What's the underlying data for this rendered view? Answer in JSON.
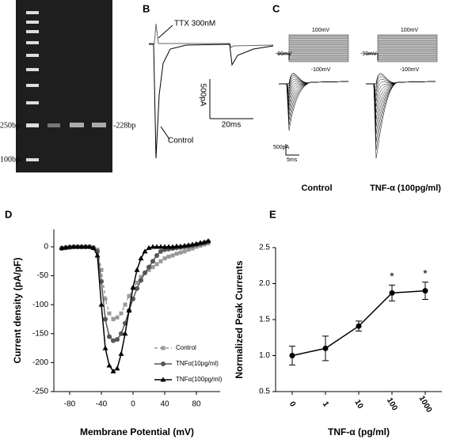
{
  "panels": {
    "A": {
      "label": "A",
      "markers": [
        "250bp-",
        "100bp-",
        "-228bp"
      ]
    },
    "B": {
      "label": "B",
      "texts": [
        "TTX 300nM",
        "Control",
        "500pA",
        "20ms"
      ]
    },
    "C": {
      "label": "C",
      "texts": [
        "100mV",
        "-90mV",
        "-100mV",
        "100mV",
        "-90mV",
        "-100mV",
        "500pA",
        "5ms"
      ],
      "conditions": [
        "Control",
        "TNF-α (100pg/ml)"
      ]
    },
    "D": {
      "label": "D"
    },
    "E": {
      "label": "E"
    }
  },
  "chart_data": [
    {
      "type": "line",
      "xlabel": "Membrane Potential (mV)",
      "ylabel": "Current density (pA/pF)",
      "x": [
        -90,
        -85,
        -80,
        -75,
        -70,
        -65,
        -60,
        -55,
        -50,
        -45,
        -40,
        -35,
        -30,
        -25,
        -20,
        -15,
        -10,
        -5,
        0,
        5,
        10,
        15,
        20,
        25,
        30,
        35,
        40,
        45,
        50,
        55,
        60,
        65,
        70,
        75,
        80,
        85,
        90,
        95
      ],
      "series": [
        {
          "name": "Control",
          "color": "#999999",
          "marker": "square",
          "dashed": true,
          "values": [
            -2,
            -1,
            -1,
            0,
            0,
            0,
            0,
            0,
            -1,
            -5,
            -40,
            -90,
            -115,
            -125,
            -122,
            -115,
            -100,
            -85,
            -72,
            -62,
            -52,
            -45,
            -40,
            -35,
            -30,
            -25,
            -20,
            -17,
            -15,
            -12,
            -10,
            -8,
            -5,
            -3,
            0,
            2,
            4,
            6
          ]
        },
        {
          "name": "TNFα(10pg/ml)",
          "color": "#555555",
          "marker": "circle",
          "dashed": false,
          "values": [
            -3,
            -2,
            -1,
            0,
            0,
            0,
            0,
            0,
            -2,
            -8,
            -60,
            -125,
            -155,
            -162,
            -160,
            -150,
            -132,
            -110,
            -90,
            -72,
            -58,
            -45,
            -35,
            -25,
            -15,
            -8,
            -5,
            -4,
            -3,
            -2,
            -1,
            0,
            1,
            2,
            4,
            5,
            7,
            9
          ]
        },
        {
          "name": "TNFα(100pg/ml)",
          "color": "#000000",
          "marker": "triangle",
          "dashed": false,
          "values": [
            -2,
            -1,
            0,
            0,
            0,
            0,
            0,
            0,
            -2,
            -15,
            -100,
            -175,
            -205,
            -215,
            -210,
            -185,
            -150,
            -110,
            -70,
            -40,
            -20,
            -8,
            -2,
            0,
            0,
            0,
            0,
            0,
            0,
            1,
            1,
            2,
            3,
            4,
            5,
            7,
            8,
            10
          ]
        }
      ],
      "xlim": [
        -100,
        110
      ],
      "xticks": [
        -80,
        -40,
        0,
        40,
        80
      ],
      "ylim": [
        -250,
        30
      ],
      "yticks": [
        0,
        -50,
        -100,
        -150,
        -200,
        -250
      ],
      "legend": "lower-right"
    },
    {
      "type": "errorline",
      "xlabel": "TNF-α (pg/ml)",
      "ylabel": "Normalized Peak Currents",
      "categories": [
        "0",
        "1",
        "10",
        "100",
        "1000"
      ],
      "series": [
        {
          "color": "#000000",
          "values": [
            1.0,
            1.1,
            1.41,
            1.87,
            1.9
          ],
          "errors": [
            0.13,
            0.17,
            0.07,
            0.11,
            0.12
          ],
          "significance": [
            null,
            null,
            null,
            "*",
            "*"
          ]
        }
      ],
      "ylim": [
        0.5,
        2.5
      ],
      "yticks": [
        0.5,
        {
          "value": 1,
          "label": "1.0"
        },
        1.5,
        {
          "value": 2,
          "label": "2.0"
        },
        2.5
      ]
    }
  ]
}
